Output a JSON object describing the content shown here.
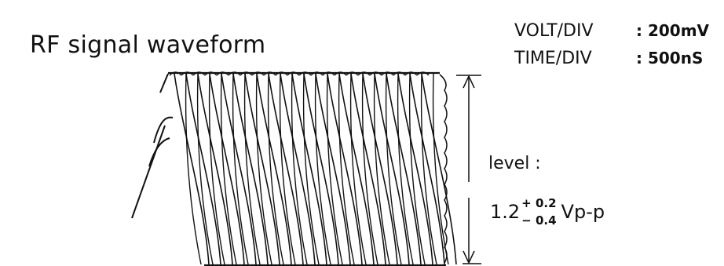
{
  "title": "RF signal waveform",
  "settings": [
    {
      "label": "VOLT/DIV",
      "value": ": 200mV"
    },
    {
      "label": "TIME/DIV",
      "value": ": 500nS"
    }
  ],
  "level": {
    "label": "level :",
    "nominal": "1.2",
    "tol_plus": "+ 0.2",
    "tol_minus": "− 0.4",
    "unit": "Vp-p"
  },
  "colors": {
    "ink": "#111111",
    "background": "#ffffff"
  }
}
